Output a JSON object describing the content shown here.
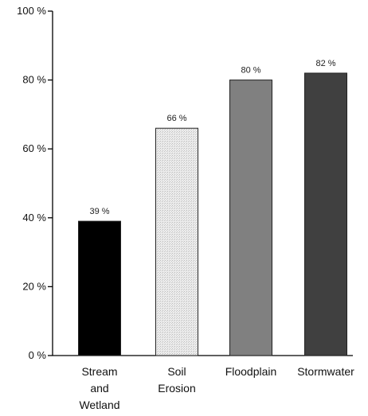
{
  "chart_data": {
    "type": "bar",
    "categories": [
      [
        "Stream",
        "and",
        "Wetland"
      ],
      [
        "Soil",
        "Erosion"
      ],
      [
        "Floodplain"
      ],
      [
        "Stormwater"
      ]
    ],
    "values": [
      39,
      66,
      80,
      82
    ],
    "data_labels": [
      "39 %",
      "66 %",
      "80 %",
      "82 %"
    ],
    "ylim": [
      0,
      100
    ],
    "y_ticks": [
      0,
      20,
      40,
      60,
      80,
      100
    ],
    "y_tick_labels": [
      "0 %",
      "20 %",
      "40 %",
      "60 %",
      "80 %",
      "100 %"
    ],
    "bar_colors": [
      "#000000",
      "#e0e0e0",
      "#808080",
      "#404040"
    ],
    "title": "",
    "xlabel": "",
    "ylabel": "",
    "grid": false,
    "legend": "none"
  }
}
